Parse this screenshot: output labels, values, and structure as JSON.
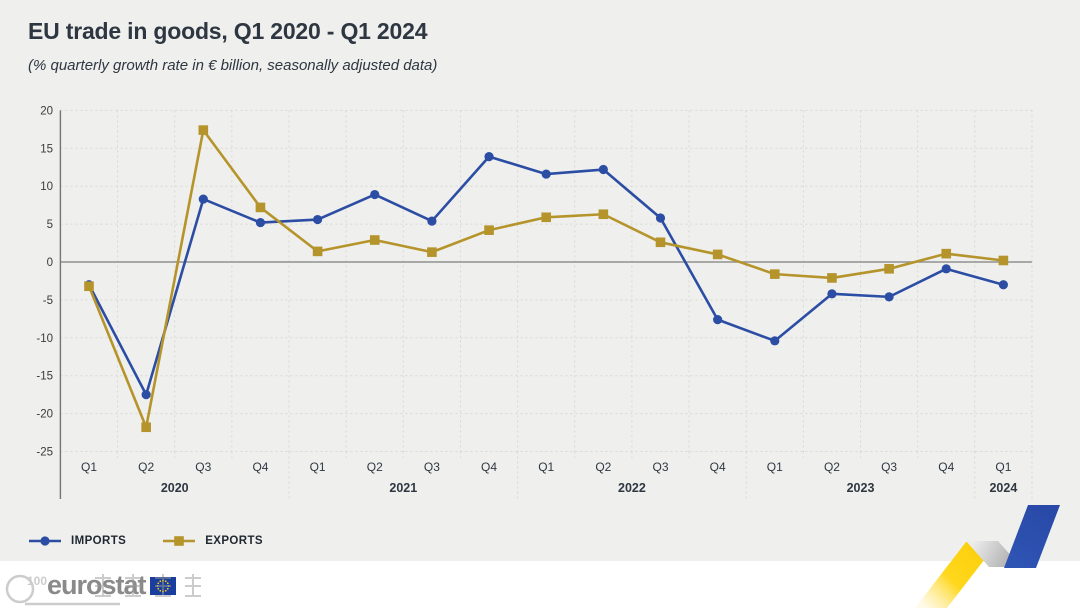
{
  "header": {
    "title": "EU trade in goods, Q1 2020 - Q1 2024",
    "subtitle": "(% quarterly growth rate in € billion, seasonally adjusted data)"
  },
  "chart_data": {
    "type": "line",
    "quarters": [
      "Q1",
      "Q2",
      "Q3",
      "Q4",
      "Q1",
      "Q2",
      "Q3",
      "Q4",
      "Q1",
      "Q2",
      "Q3",
      "Q4",
      "Q1",
      "Q2",
      "Q3",
      "Q4",
      "Q1"
    ],
    "year_groups": [
      {
        "label": "2020",
        "start": 0,
        "end": 3
      },
      {
        "label": "2021",
        "start": 4,
        "end": 7
      },
      {
        "label": "2022",
        "start": 8,
        "end": 11
      },
      {
        "label": "2023",
        "start": 12,
        "end": 15
      },
      {
        "label": "2024",
        "start": 16,
        "end": 16
      }
    ],
    "series": [
      {
        "name": "IMPORTS",
        "marker": "circle",
        "color": "#2B4DA3",
        "values": [
          -3.0,
          -17.5,
          8.3,
          5.2,
          5.6,
          8.9,
          5.4,
          13.9,
          11.6,
          12.2,
          5.8,
          -7.6,
          -10.4,
          -4.2,
          -4.6,
          -0.9,
          -3.0
        ]
      },
      {
        "name": "EXPORTS",
        "marker": "square",
        "color": "#B5942B",
        "values": [
          -3.2,
          -21.8,
          17.4,
          7.2,
          1.4,
          2.9,
          1.3,
          4.2,
          5.9,
          6.3,
          2.6,
          1.0,
          -1.6,
          -2.1,
          -0.9,
          1.1,
          0.2
        ]
      }
    ],
    "ylim": [
      -25,
      20
    ],
    "ytick_step": 5,
    "yticks": [
      20,
      15,
      10,
      5,
      0,
      -5,
      -10,
      -15,
      -20,
      -25
    ],
    "grid": "dashed",
    "zero_line": true,
    "legend_position": "bottom-left"
  },
  "colors": {
    "background": "#EFEFED",
    "footer_background": "#FFFFFF",
    "grid": "#D8D8D4",
    "zero_line": "#909090",
    "axis": "#757575",
    "text_dark": "#2E3741",
    "tick_text": "#3B3B3B",
    "ribbon_yellow": "#FBCE0A",
    "ribbon_gray": "#A8A8A8",
    "ribbon_blue": "#2949A7",
    "eu_flag_blue": "#1A3E9E",
    "eu_flag_stars": "#FFCC00",
    "logo_gray": "#8A8A8A"
  },
  "footer": {
    "logo_text": "eurostat",
    "watermark_text": "100"
  }
}
